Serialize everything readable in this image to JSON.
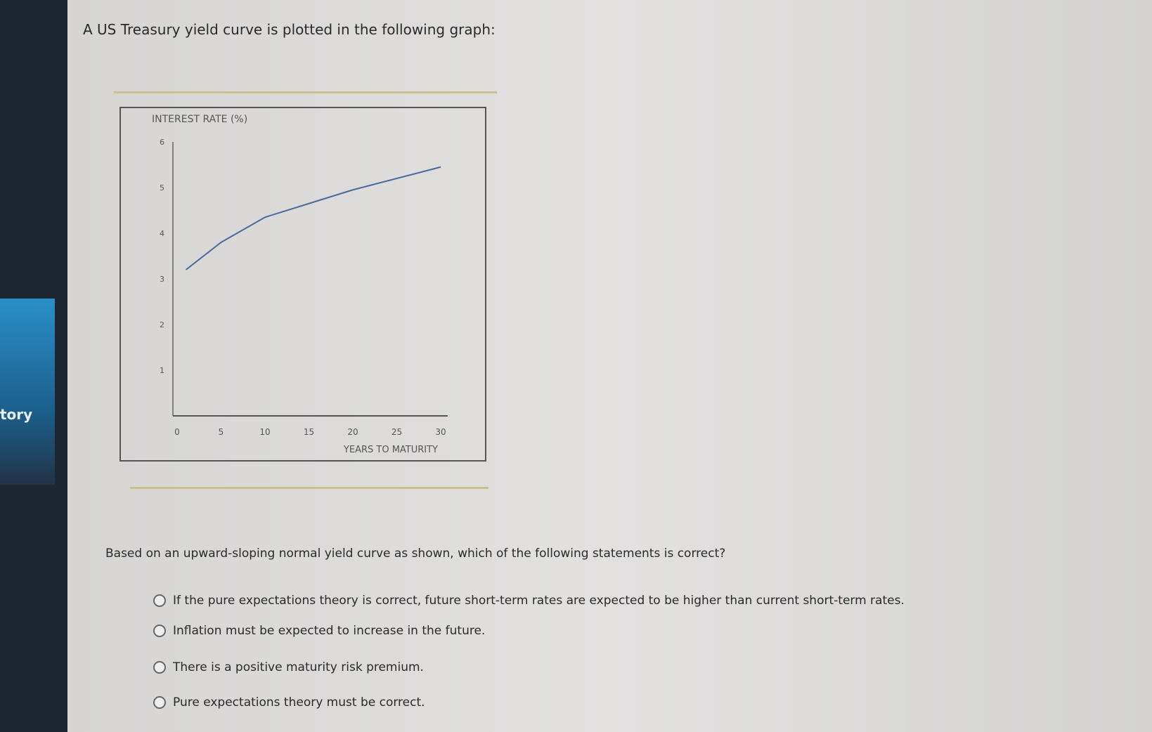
{
  "sidebar": {
    "active_item_label": "tory"
  },
  "question": {
    "intro": "A US Treasury yield curve is plotted in the following graph:",
    "prompt": "Based on an upward-sloping normal yield curve as shown, which of the following statements is correct?",
    "options": [
      "If the pure expectations theory is correct, future short-term rates are expected to be higher than current short-term rates.",
      "Inflation must be expected to increase in the future.",
      "There is a positive maturity risk premium.",
      "Pure expectations theory must be correct."
    ]
  },
  "chart_data": {
    "type": "line",
    "ylabel": "INTEREST RATE (%)",
    "xlabel": "YEARS TO MATURITY",
    "xlim": [
      0,
      30
    ],
    "ylim": [
      0,
      6
    ],
    "xticks": [
      "0",
      "5",
      "10",
      "15",
      "20",
      "25",
      "30"
    ],
    "yticks": [
      "1",
      "2",
      "3",
      "4",
      "5",
      "6"
    ],
    "grid": false,
    "series": [
      {
        "x": [
          1,
          5,
          10,
          15,
          20,
          25,
          30
        ],
        "y": [
          3.2,
          3.8,
          4.35,
          4.65,
          4.95,
          5.2,
          5.45
        ],
        "color": "#4a6a9a"
      }
    ]
  }
}
